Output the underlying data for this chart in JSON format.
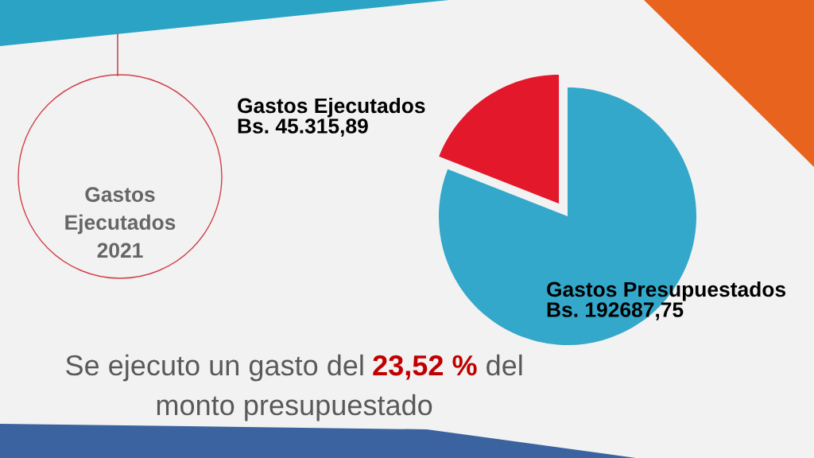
{
  "chart_data": {
    "type": "pie",
    "title": "Gastos\nEjecutados\n2021",
    "categories": [
      "Gastos Ejecutados",
      "Gastos Presupuestados"
    ],
    "values": [
      45315.89,
      192687.75
    ],
    "colors": [
      "#e3182a",
      "#33a8ca"
    ],
    "value_labels": [
      "Bs. 45.315,89",
      "Bs. 192687,75"
    ],
    "annotations": [
      "Se ejecuto un gasto del",
      "23,52 %",
      "del",
      "monto presupuestado"
    ]
  }
}
